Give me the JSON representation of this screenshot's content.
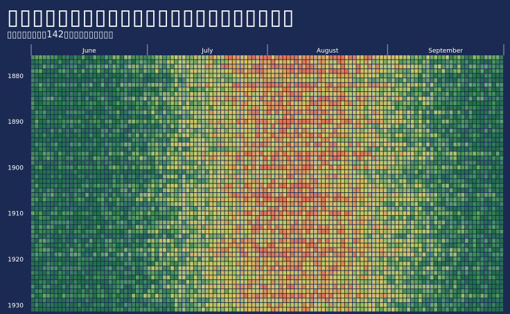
{
  "header": {
    "title": "▯▯▯▯▯▯▯▯▯▯▯▯▯▯▯▯▯▯▯▯▯▯▯",
    "subtitle": "▯▯▯▯▯▯▯▯142▯▯▯▯▯▯▯▯▯▯"
  },
  "chart_data": {
    "type": "heatmap",
    "title": "▯▯▯▯▯▯▯▯▯▯▯▯▯▯▯▯▯▯▯▯▯▯▯",
    "subtitle": "▯▯▯▯▯▯▯▯142▯▯▯▯▯▯▯▯▯▯",
    "x_axis": {
      "unit": "day",
      "range": [
        "June 1",
        "September 30"
      ],
      "month_labels": [
        "June",
        "July",
        "August",
        "September"
      ],
      "month_days": [
        30,
        31,
        31,
        30
      ],
      "position": "top"
    },
    "y_axis": {
      "unit": "year",
      "first_year_visible": 1876,
      "last_year_visible": 1931,
      "tick_labels": [
        "1880",
        "1890",
        "1900",
        "1910",
        "1920",
        "1930"
      ],
      "tick_values": [
        1880,
        1890,
        1900,
        1910,
        1920,
        1930
      ]
    },
    "color_scale": {
      "low": "#236f4e",
      "mid_low": "#4f9a62",
      "mid": "#b5c86a",
      "mid_high": "#d8c65f",
      "high": "#e3735a",
      "description": "cooler days green, warmest days red/orange; warmest period late July to mid August"
    },
    "grid": true,
    "legend": "none"
  }
}
